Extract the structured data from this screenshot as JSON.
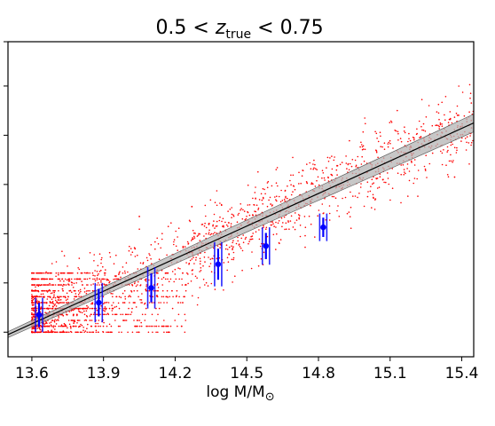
{
  "chart_data": {
    "type": "scatter",
    "title_parts": {
      "pre": "0.5 < ",
      "var": "z",
      "sub": "true",
      "post": " < 0.75"
    },
    "xlabel_parts": {
      "main": "log M/M",
      "sub": "⊙"
    },
    "ylabel": "",
    "xlim": [
      13.5,
      15.45
    ],
    "ylim": [
      0.0,
      6.4
    ],
    "xticks": [
      "13.6",
      "13.9",
      "14.2",
      "14.5",
      "14.8",
      "15.1",
      "15.4"
    ],
    "yticks_unlabeled": [
      0.5,
      1.5,
      2.5,
      3.5,
      4.5,
      5.5,
      6.5
    ],
    "grid": false,
    "legend": "none",
    "fit_line": {
      "x": [
        13.5,
        15.45
      ],
      "y": [
        0.45,
        4.75
      ],
      "band_halfwidth_at_ends": [
        0.06,
        0.18
      ],
      "color": "#000000",
      "band_color": "#b4b4b4"
    },
    "scatter": {
      "color": "#ff0000",
      "x_range": [
        13.6,
        15.45
      ],
      "discrete_levels": [
        0.5,
        0.62,
        0.74,
        0.86,
        0.98,
        1.1,
        1.22,
        1.34,
        1.46,
        1.58,
        1.7
      ],
      "dense_upper_bound": 2.9,
      "outliers": [
        {
          "x": 14.97,
          "y": 3.8
        },
        {
          "x": 15.19,
          "y": 3.95
        },
        {
          "x": 15.37,
          "y": 3.65
        },
        {
          "x": 14.6,
          "y": 3.1
        },
        {
          "x": 14.27,
          "y": 3.05
        },
        {
          "x": 14.05,
          "y": 2.85
        }
      ]
    },
    "binned_points": [
      {
        "x": 13.63,
        "y": 0.85,
        "err": 0.35
      },
      {
        "x": 13.88,
        "y": 1.1,
        "err": 0.4
      },
      {
        "x": 14.1,
        "y": 1.4,
        "err": 0.42
      },
      {
        "x": 14.38,
        "y": 1.88,
        "err": 0.45
      },
      {
        "x": 14.58,
        "y": 2.25,
        "err": 0.38
      },
      {
        "x": 14.82,
        "y": 2.63,
        "err": 0.28
      }
    ],
    "binned_color": "#0000ff"
  }
}
